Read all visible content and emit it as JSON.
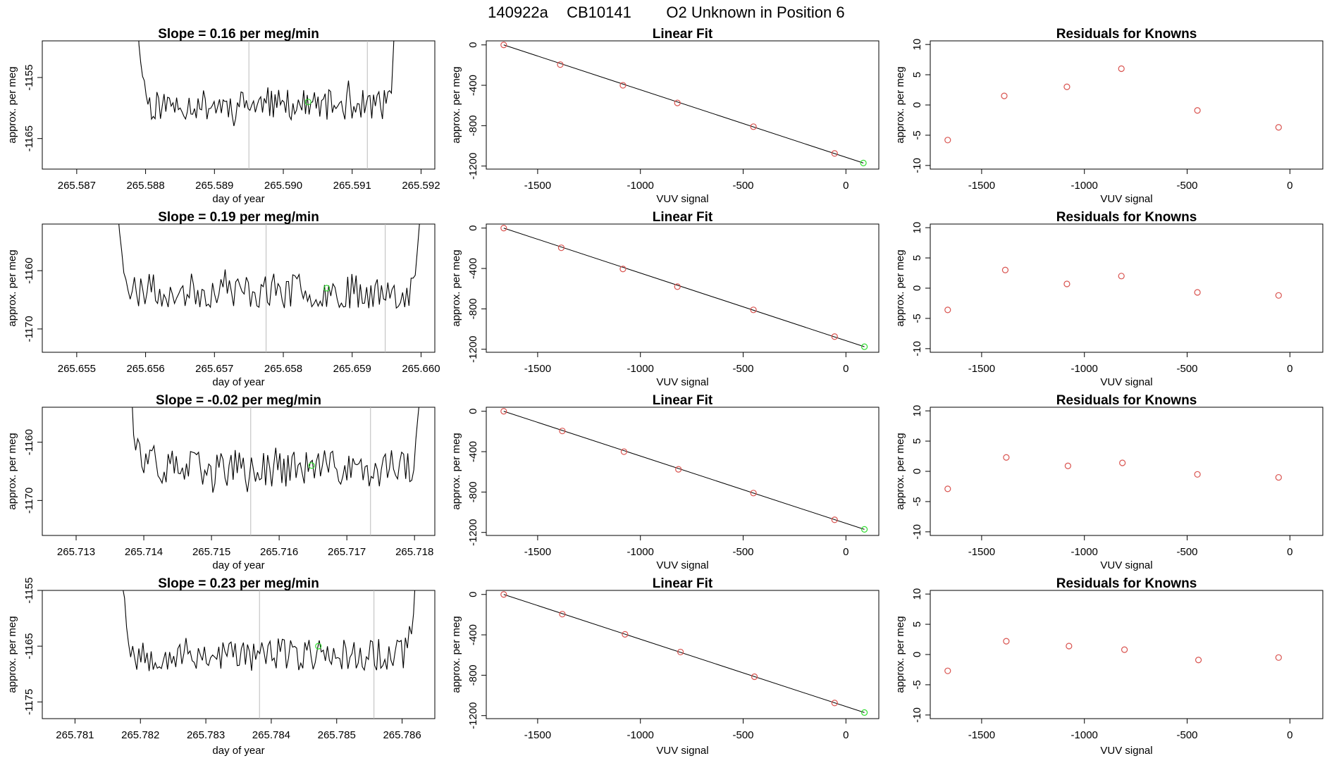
{
  "figure": {
    "title_parts": [
      "140922a",
      "CB10141",
      "O2 Unknown in Position  6"
    ]
  },
  "colors": {
    "trace": "#000000",
    "fit_line": "#000000",
    "known_points": "#d9534f",
    "unknown_point": "#33dd33",
    "marker_lines": "#bbbbbb",
    "frame": "#000000"
  },
  "chart_data": [
    {
      "type": "line",
      "row": 1,
      "title": "Slope =  0.16  per meg/min",
      "xlabel": "day of year",
      "ylabel": "approx. per meg",
      "xlim": [
        265.5865,
        265.5922
      ],
      "ylim": [
        -1170,
        -1149
      ],
      "xticks": [
        265.587,
        265.588,
        265.589,
        265.59,
        265.591,
        265.592
      ],
      "xtick_labels": [
        "265.587",
        "265.588",
        "265.589",
        "265.590",
        "265.591",
        "265.592"
      ],
      "yticks": [
        -1155,
        -1165
      ],
      "ytick_labels": [
        "-1155",
        "-1165"
      ],
      "trace_x_range": [
        265.5878,
        265.5917
      ],
      "trace_level": -1159.5,
      "trace_noise": 2.5,
      "trace_seed": 11,
      "vertical_lines": [
        265.5895,
        265.59122
      ],
      "unknown_point": {
        "x": 265.59036,
        "y": -1159
      }
    },
    {
      "type": "line",
      "row": 2,
      "title": "Slope =  0.19  per meg/min",
      "xlabel": "day of year",
      "ylabel": "approx. per meg",
      "xlim": [
        265.6545,
        265.6602
      ],
      "ylim": [
        -1174,
        -1152
      ],
      "xticks": [
        265.655,
        265.656,
        265.657,
        265.658,
        265.659,
        265.66
      ],
      "xtick_labels": [
        "265.655",
        "265.656",
        "265.657",
        "265.658",
        "265.659",
        "265.660"
      ],
      "yticks": [
        -1160,
        -1170
      ],
      "ytick_labels": [
        "-1160",
        "-1170"
      ],
      "trace_x_range": [
        265.6555,
        265.6601
      ],
      "trace_level": -1163.5,
      "trace_noise": 3,
      "trace_seed": 23,
      "vertical_lines": [
        265.65775,
        265.65948
      ],
      "unknown_point": {
        "x": 265.65863,
        "y": -1163
      }
    },
    {
      "type": "line",
      "row": 3,
      "title": "Slope =  -0.02  per meg/min",
      "xlabel": "day of year",
      "ylabel": "approx. per meg",
      "xlim": [
        265.7125,
        265.7183
      ],
      "ylim": [
        -1176,
        -1154
      ],
      "xticks": [
        265.713,
        265.714,
        265.715,
        265.716,
        265.717,
        265.718
      ],
      "xtick_labels": [
        "265.713",
        "265.714",
        "265.715",
        "265.716",
        "265.717",
        "265.718"
      ],
      "yticks": [
        -1160,
        -1170
      ],
      "ytick_labels": [
        "-1160",
        "-1170"
      ],
      "trace_x_range": [
        265.7137,
        265.7182
      ],
      "trace_level": -1164.5,
      "trace_noise": 3.2,
      "trace_seed": 37,
      "vertical_lines": [
        265.71558,
        265.71735
      ],
      "unknown_point": {
        "x": 265.71648,
        "y": -1164
      }
    },
    {
      "type": "line",
      "row": 4,
      "title": "Slope =  0.23  per meg/min",
      "xlabel": "day of year",
      "ylabel": "approx. per meg",
      "xlim": [
        265.7805,
        265.7865
      ],
      "ylim": [
        -1178,
        -1155
      ],
      "xticks": [
        265.781,
        265.782,
        265.783,
        265.784,
        265.785,
        265.786
      ],
      "xtick_labels": [
        "265.781",
        "265.782",
        "265.783",
        "265.784",
        "265.785",
        "265.786"
      ],
      "yticks": [
        -1155,
        -1165,
        -1175
      ],
      "ytick_labels": [
        "-1155",
        "-1165",
        "-1175"
      ],
      "trace_x_range": [
        265.7816,
        265.7863
      ],
      "trace_level": -1166.5,
      "trace_noise": 3,
      "trace_seed": 53,
      "vertical_lines": [
        265.78382,
        265.78557
      ],
      "unknown_point": {
        "x": 265.78472,
        "y": -1165
      }
    },
    {
      "type": "scatter",
      "row": 1,
      "title": "Linear Fit",
      "xlabel": "VUV signal",
      "ylabel": "approx. per meg",
      "xlim": [
        -1750,
        160
      ],
      "ylim": [
        -1230,
        40
      ],
      "xticks": [
        -1500,
        -1000,
        -500,
        0
      ],
      "xtick_labels": [
        "-1500",
        "-1000",
        "-500",
        "0"
      ],
      "yticks": [
        0,
        -400,
        -800,
        -1200
      ],
      "ytick_labels": [
        "0",
        "-400",
        "-800",
        "-1200"
      ],
      "known_x": [
        -1665,
        -1390,
        -1085,
        -820,
        -450,
        -55
      ],
      "known_y": [
        0,
        -195,
        -400,
        -575,
        -810,
        -1075
      ],
      "unknown": {
        "x": 85,
        "y": -1170
      },
      "fit_line": {
        "x": [
          -1665,
          85
        ],
        "y": [
          0,
          -1170
        ]
      }
    },
    {
      "type": "scatter",
      "row": 2,
      "title": "Linear Fit",
      "xlabel": "VUV signal",
      "ylabel": "approx. per meg",
      "xlim": [
        -1750,
        160
      ],
      "ylim": [
        -1230,
        40
      ],
      "xticks": [
        -1500,
        -1000,
        -500,
        0
      ],
      "xtick_labels": [
        "-1500",
        "-1000",
        "-500",
        "0"
      ],
      "yticks": [
        0,
        -400,
        -800,
        -1200
      ],
      "ytick_labels": [
        "0",
        "-400",
        "-800",
        "-1200"
      ],
      "known_x": [
        -1665,
        -1385,
        -1085,
        -820,
        -450,
        -55
      ],
      "known_y": [
        0,
        -195,
        -405,
        -580,
        -810,
        -1075
      ],
      "unknown": {
        "x": 90,
        "y": -1175
      },
      "fit_line": {
        "x": [
          -1665,
          90
        ],
        "y": [
          0,
          -1175
        ]
      }
    },
    {
      "type": "scatter",
      "row": 3,
      "title": "Linear Fit",
      "xlabel": "VUV signal",
      "ylabel": "approx. per meg",
      "xlim": [
        -1750,
        160
      ],
      "ylim": [
        -1230,
        40
      ],
      "xticks": [
        -1500,
        -1000,
        -500,
        0
      ],
      "xtick_labels": [
        "-1500",
        "-1000",
        "-500",
        "0"
      ],
      "yticks": [
        0,
        -400,
        -800,
        -1200
      ],
      "ytick_labels": [
        "0",
        "-400",
        "-800",
        "-1200"
      ],
      "known_x": [
        -1665,
        -1380,
        -1080,
        -815,
        -450,
        -55
      ],
      "known_y": [
        0,
        -195,
        -400,
        -575,
        -810,
        -1075
      ],
      "unknown": {
        "x": 90,
        "y": -1170
      },
      "fit_line": {
        "x": [
          -1665,
          90
        ],
        "y": [
          0,
          -1170
        ]
      }
    },
    {
      "type": "scatter",
      "row": 4,
      "title": "Linear Fit",
      "xlabel": "VUV signal",
      "ylabel": "approx. per meg",
      "xlim": [
        -1750,
        160
      ],
      "ylim": [
        -1230,
        40
      ],
      "xticks": [
        -1500,
        -1000,
        -500,
        0
      ],
      "xtick_labels": [
        "-1500",
        "-1000",
        "-500",
        "0"
      ],
      "yticks": [
        0,
        -400,
        -800,
        -1200
      ],
      "ytick_labels": [
        "0",
        "-400",
        "-800",
        "-1200"
      ],
      "known_x": [
        -1665,
        -1380,
        -1075,
        -805,
        -445,
        -55
      ],
      "known_y": [
        0,
        -195,
        -395,
        -570,
        -815,
        -1075
      ],
      "unknown": {
        "x": 90,
        "y": -1170
      },
      "fit_line": {
        "x": [
          -1665,
          90
        ],
        "y": [
          0,
          -1170
        ]
      }
    },
    {
      "type": "scatter",
      "row": 1,
      "title": "Residuals for Knowns",
      "xlabel": "VUV signal",
      "ylabel": "approx. per meg",
      "xlim": [
        -1750,
        160
      ],
      "ylim": [
        -10.6,
        10.6
      ],
      "xticks": [
        -1500,
        -1000,
        -500,
        0
      ],
      "xtick_labels": [
        "-1500",
        "-1000",
        "-500",
        "0"
      ],
      "yticks": [
        10,
        5,
        0,
        -5,
        -10
      ],
      "ytick_labels": [
        "10",
        "5",
        "0",
        "-5",
        "-10"
      ],
      "x": [
        -1665,
        -1390,
        -1085,
        -820,
        -450,
        -55
      ],
      "y": [
        -5.8,
        1.5,
        3.0,
        6.0,
        -0.9,
        -3.7
      ]
    },
    {
      "type": "scatter",
      "row": 2,
      "title": "Residuals for Knowns",
      "xlabel": "VUV signal",
      "ylabel": "approx. per meg",
      "xlim": [
        -1750,
        160
      ],
      "ylim": [
        -10.6,
        10.6
      ],
      "xticks": [
        -1500,
        -1000,
        -500,
        0
      ],
      "xtick_labels": [
        "-1500",
        "-1000",
        "-500",
        "0"
      ],
      "yticks": [
        10,
        5,
        0,
        -5,
        -10
      ],
      "ytick_labels": [
        "10",
        "5",
        "0",
        "-5",
        "-10"
      ],
      "x": [
        -1665,
        -1385,
        -1085,
        -820,
        -450,
        -55
      ],
      "y": [
        -3.6,
        3.0,
        0.7,
        2.0,
        -0.7,
        -1.2
      ]
    },
    {
      "type": "scatter",
      "row": 3,
      "title": "Residuals for Knowns",
      "xlabel": "VUV signal",
      "ylabel": "approx. per meg",
      "xlim": [
        -1750,
        160
      ],
      "ylim": [
        -10.6,
        10.6
      ],
      "xticks": [
        -1500,
        -1000,
        -500,
        0
      ],
      "xtick_labels": [
        "-1500",
        "-1000",
        "-500",
        "0"
      ],
      "yticks": [
        10,
        5,
        0,
        -5,
        -10
      ],
      "ytick_labels": [
        "10",
        "5",
        "0",
        "-5",
        "-10"
      ],
      "x": [
        -1665,
        -1380,
        -1080,
        -815,
        -450,
        -55
      ],
      "y": [
        -2.9,
        2.3,
        0.9,
        1.4,
        -0.5,
        -1.0
      ]
    },
    {
      "type": "scatter",
      "row": 4,
      "title": "Residuals for Knowns",
      "xlabel": "VUV signal",
      "ylabel": "approx. per meg",
      "xlim": [
        -1750,
        160
      ],
      "ylim": [
        -10.6,
        10.6
      ],
      "xticks": [
        -1500,
        -1000,
        -500,
        0
      ],
      "xtick_labels": [
        "-1500",
        "-1000",
        "-500",
        "0"
      ],
      "yticks": [
        10,
        5,
        0,
        -5,
        -10
      ],
      "ytick_labels": [
        "10",
        "5",
        "0",
        "-5",
        "-10"
      ],
      "x": [
        -1665,
        -1380,
        -1075,
        -805,
        -445,
        -55
      ],
      "y": [
        -2.7,
        2.2,
        1.4,
        0.8,
        -0.9,
        -0.5
      ]
    }
  ]
}
